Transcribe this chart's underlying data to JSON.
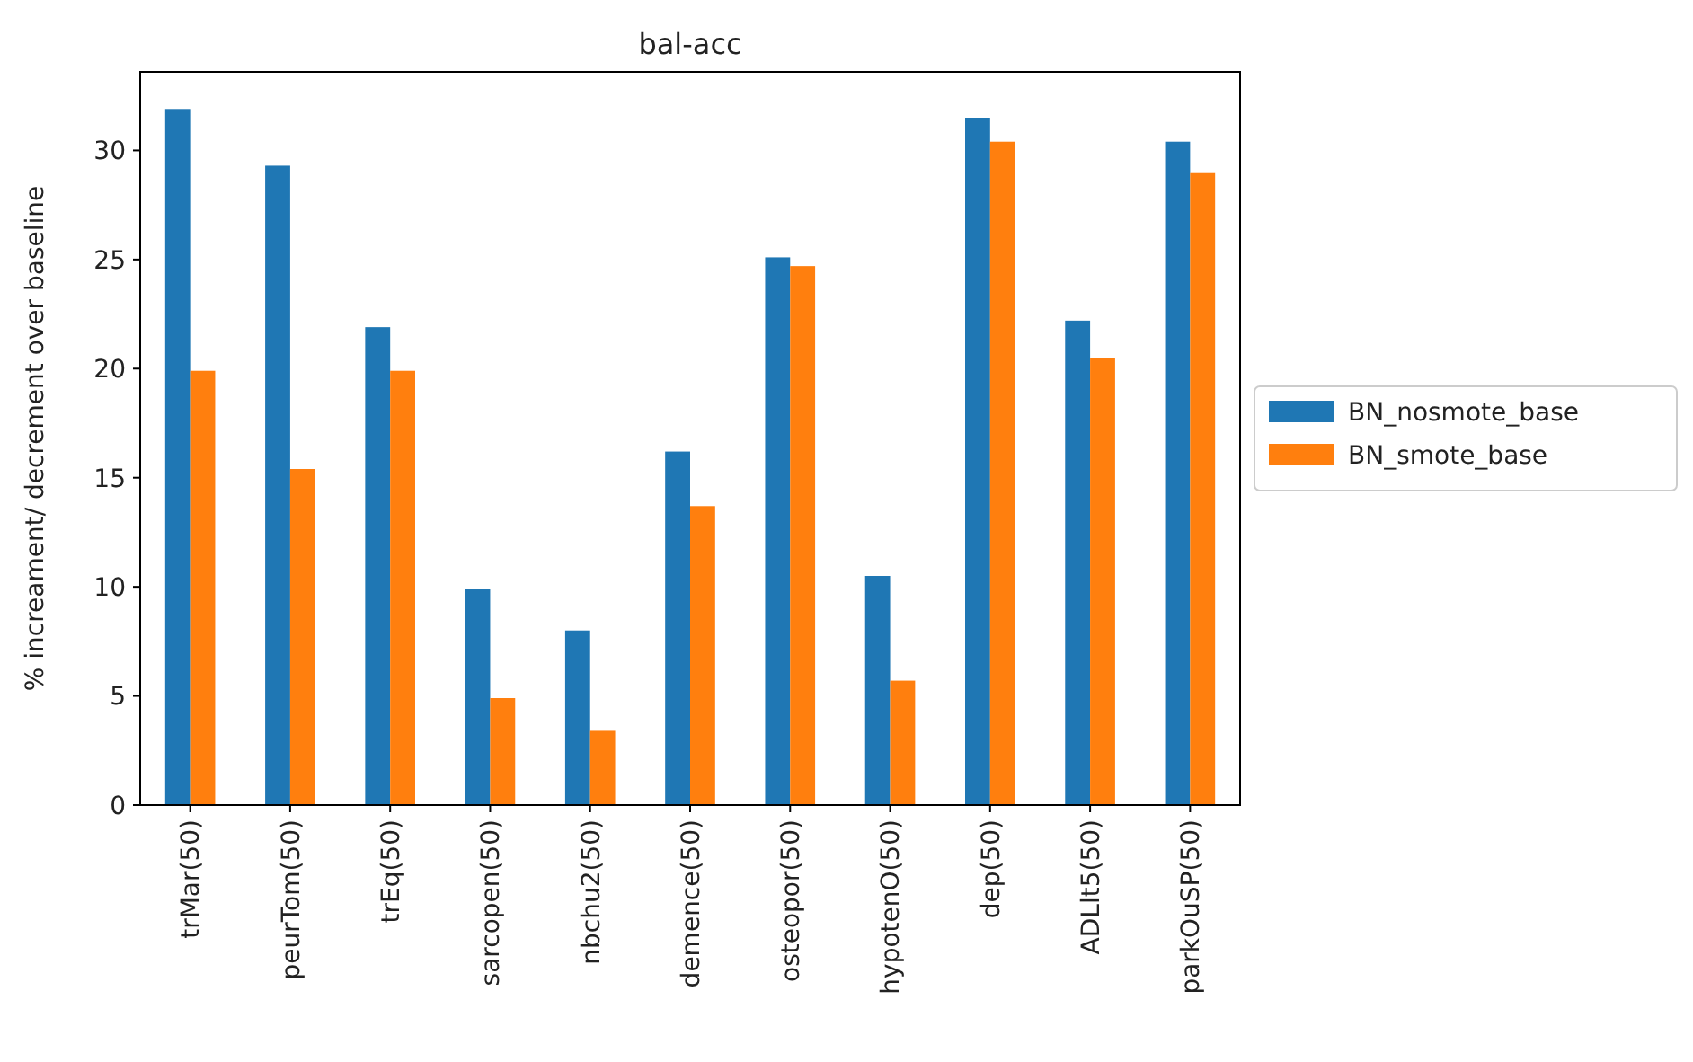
{
  "chart_data": {
    "type": "bar",
    "title": "bal-acc",
    "ylabel": "% increament/ decrement over baseline",
    "categories": [
      "trMar(50)",
      "peurTom(50)",
      "trEq(50)",
      "sarcopen(50)",
      "nbchu2(50)",
      "demence(50)",
      "osteopor(50)",
      "hypotenO(50)",
      "dep(50)",
      "ADLlt5(50)",
      "parkOuSP(50)"
    ],
    "series": [
      {
        "name": "BN_nosmote_base",
        "color": "#1f77b4",
        "values": [
          31.9,
          29.3,
          21.9,
          9.9,
          8.0,
          16.2,
          25.1,
          10.5,
          31.5,
          22.2,
          30.4
        ]
      },
      {
        "name": "BN_smote_base",
        "color": "#ff7f0e",
        "values": [
          19.9,
          15.4,
          19.9,
          4.9,
          3.4,
          13.7,
          24.7,
          5.7,
          30.4,
          20.5,
          29.0
        ]
      }
    ],
    "ylim": [
      0,
      33.6
    ],
    "yticks": [
      0,
      5,
      10,
      15,
      20,
      25,
      30
    ],
    "grid": false,
    "legend": "right"
  }
}
